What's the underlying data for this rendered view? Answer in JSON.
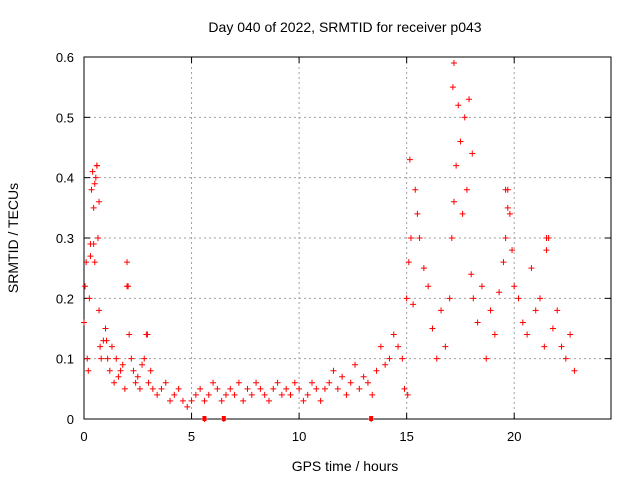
{
  "chart_data": {
    "type": "scatter",
    "title": "Day 040 of 2022, SRMTID for receiver p043",
    "xlabel": "GPS time / hours",
    "ylabel": "SRMTID / TECUs",
    "xlim": [
      0,
      24.5
    ],
    "ylim": [
      0,
      0.6
    ],
    "xticks": [
      0,
      5,
      10,
      15,
      20
    ],
    "yticks": [
      0,
      0.1,
      0.2,
      0.3,
      0.4,
      0.5,
      0.6
    ],
    "xtick_labels": [
      "0",
      "5",
      "10",
      "15",
      "20"
    ],
    "ytick_labels": [
      "0",
      "0.1",
      "0.2",
      "0.3",
      "0.4",
      "0.5",
      "0.6"
    ],
    "grid": true,
    "marker": "+",
    "color": "#ff0000",
    "series": [
      {
        "name": "SRMTID",
        "x": [
          0.0,
          0.05,
          0.1,
          0.15,
          0.2,
          0.25,
          0.3,
          0.35,
          0.4,
          0.45,
          0.5,
          0.55,
          0.6,
          0.65,
          0.7,
          0.75,
          0.8,
          0.9,
          1.0,
          1.1,
          1.2,
          1.3,
          1.4,
          1.5,
          1.6,
          1.7,
          1.8,
          1.9,
          2.0,
          2.05,
          2.1,
          2.2,
          2.3,
          2.4,
          2.5,
          2.6,
          2.7,
          2.8,
          2.9,
          3.0,
          3.1,
          3.2,
          3.4,
          3.6,
          3.8,
          4.0,
          4.2,
          4.4,
          4.6,
          4.8,
          5.0,
          5.2,
          5.4,
          5.6,
          5.8,
          6.0,
          6.2,
          6.4,
          6.6,
          6.8,
          7.0,
          7.2,
          7.4,
          7.6,
          7.8,
          8.0,
          8.2,
          8.4,
          8.6,
          8.8,
          9.0,
          9.2,
          9.4,
          9.6,
          9.8,
          10.0,
          10.2,
          10.4,
          10.6,
          10.8,
          11.0,
          11.2,
          11.4,
          11.6,
          11.8,
          12.0,
          12.2,
          12.4,
          12.6,
          12.8,
          13.0,
          13.2,
          13.4,
          13.6,
          13.8,
          14.0,
          14.2,
          14.4,
          14.6,
          14.8,
          14.9,
          15.0,
          15.1,
          15.2,
          15.3,
          15.4,
          15.5,
          15.6,
          15.8,
          16.0,
          16.2,
          16.4,
          16.6,
          16.8,
          17.0,
          17.1,
          17.2,
          17.3,
          17.4,
          17.5,
          17.6,
          17.8,
          18.0,
          18.1,
          18.3,
          18.5,
          18.7,
          18.9,
          19.1,
          19.3,
          19.5,
          19.6,
          19.7,
          19.8,
          19.9,
          20.0,
          20.2,
          20.4,
          20.6,
          20.8,
          21.0,
          21.2,
          21.4,
          21.5,
          21.6,
          21.8,
          22.0,
          22.2,
          22.4,
          22.6,
          22.8,
          0.3,
          0.5,
          0.7,
          0.45,
          0.6,
          1.05,
          2.0,
          2.95,
          5.6,
          6.5,
          13.35,
          15.05,
          15.15,
          17.15,
          17.2,
          17.7,
          17.9,
          18.05,
          19.6,
          19.7,
          21.5
        ],
        "y": [
          0.16,
          0.22,
          0.26,
          0.1,
          0.08,
          0.2,
          0.29,
          0.38,
          0.41,
          0.35,
          0.26,
          0.4,
          0.42,
          0.3,
          0.18,
          0.12,
          0.1,
          0.13,
          0.15,
          0.1,
          0.08,
          0.12,
          0.06,
          0.1,
          0.07,
          0.08,
          0.09,
          0.05,
          0.26,
          0.22,
          0.14,
          0.1,
          0.08,
          0.06,
          0.07,
          0.05,
          0.09,
          0.1,
          0.14,
          0.06,
          0.08,
          0.05,
          0.04,
          0.05,
          0.06,
          0.03,
          0.04,
          0.05,
          0.03,
          0.02,
          0.03,
          0.04,
          0.05,
          0.03,
          0.04,
          0.06,
          0.05,
          0.03,
          0.04,
          0.05,
          0.04,
          0.06,
          0.03,
          0.05,
          0.04,
          0.06,
          0.05,
          0.04,
          0.03,
          0.05,
          0.06,
          0.04,
          0.05,
          0.04,
          0.06,
          0.05,
          0.03,
          0.04,
          0.06,
          0.05,
          0.03,
          0.05,
          0.06,
          0.08,
          0.05,
          0.07,
          0.04,
          0.06,
          0.09,
          0.05,
          0.07,
          0.06,
          0.04,
          0.08,
          0.12,
          0.09,
          0.1,
          0.14,
          0.12,
          0.1,
          0.05,
          0.2,
          0.26,
          0.3,
          0.19,
          0.38,
          0.34,
          0.3,
          0.25,
          0.22,
          0.15,
          0.1,
          0.18,
          0.12,
          0.2,
          0.3,
          0.36,
          0.42,
          0.52,
          0.46,
          0.34,
          0.38,
          0.24,
          0.2,
          0.16,
          0.22,
          0.1,
          0.18,
          0.14,
          0.21,
          0.26,
          0.3,
          0.38,
          0.34,
          0.28,
          0.22,
          0.2,
          0.16,
          0.14,
          0.25,
          0.18,
          0.2,
          0.12,
          0.28,
          0.3,
          0.15,
          0.18,
          0.12,
          0.1,
          0.14,
          0.08,
          0.27,
          0.39,
          0.36,
          0.29,
          0.42,
          0.13,
          0.22,
          0.14,
          0.0,
          0.0,
          0.0,
          0.04,
          0.43,
          0.55,
          0.59,
          0.5,
          0.53,
          0.44,
          0.38,
          0.35,
          0.3
        ],
        "zero_markers_x": [
          5.6,
          6.5,
          13.35
        ]
      }
    ]
  }
}
